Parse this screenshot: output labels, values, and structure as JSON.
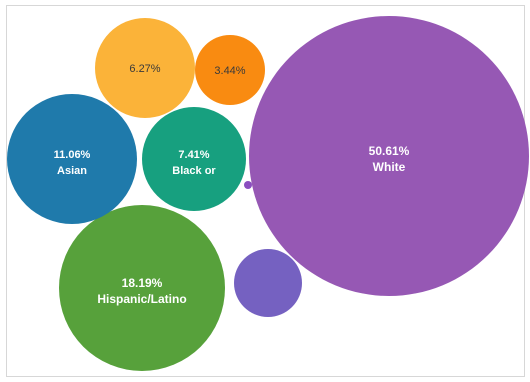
{
  "chart_data": {
    "type": "bubble",
    "title": "",
    "legend": "none",
    "series": [
      {
        "label": "White",
        "value": 50.61,
        "value_text": "50.61%",
        "color": "#9658b4",
        "label_color": "#ffffff"
      },
      {
        "label": "Hispanic/Latino",
        "value": 18.19,
        "value_text": "18.19%",
        "color": "#57a13b",
        "label_color": "#ffffff"
      },
      {
        "label": "Asian",
        "value": 11.06,
        "value_text": "11.06%",
        "color": "#1f7aab",
        "label_color": "#ffffff"
      },
      {
        "label": "Black or",
        "value": 7.41,
        "value_text": "7.41%",
        "color": "#17a07f",
        "label_color": "#ffffff"
      },
      {
        "label": "",
        "value": 6.27,
        "value_text": "6.27%",
        "color": "#fbb339",
        "label_color": "#3a3a3a"
      },
      {
        "label": "",
        "value": 3.44,
        "value_text": "3.44%",
        "color": "#f98b11",
        "label_color": "#3a3a3a"
      },
      {
        "label": "",
        "value": null,
        "value_text": "",
        "color": "#7561c1",
        "label_color": "#ffffff"
      },
      {
        "label": "",
        "value": null,
        "value_text": "",
        "color": "#8b4fc0",
        "label_color": "#ffffff"
      }
    ]
  }
}
